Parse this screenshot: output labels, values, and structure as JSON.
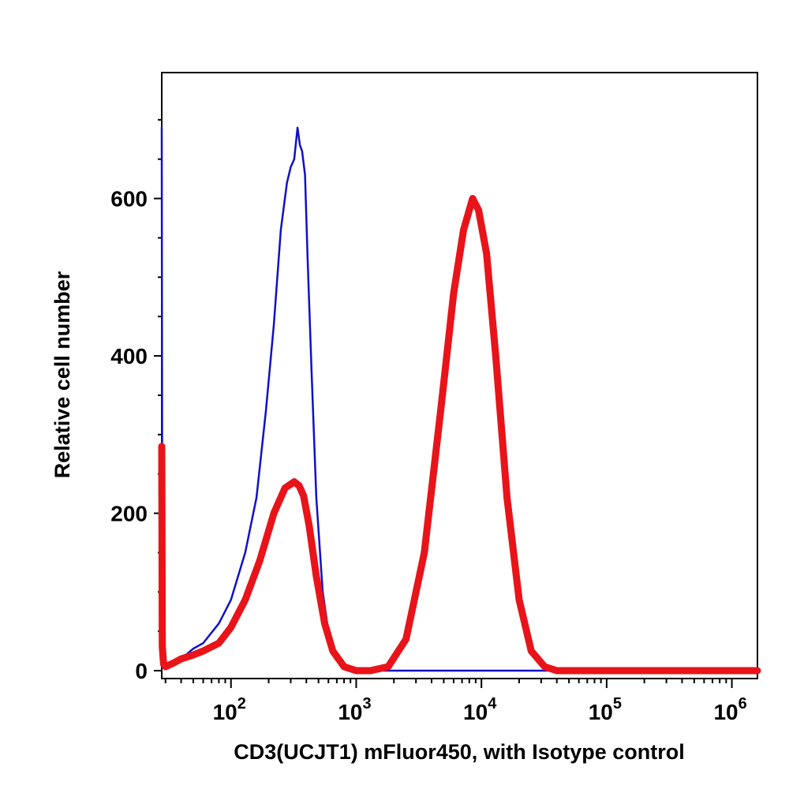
{
  "chart_data": {
    "type": "line",
    "xlabel": "CD3(UCJT1) mFluor450, with Isotype control",
    "ylabel": "Relative cell number",
    "x_scale": "log",
    "xlim": [
      28,
      1600000
    ],
    "ylim": [
      -10,
      760
    ],
    "y_ticks": [
      0,
      200,
      400,
      600
    ],
    "y_tick_labels": [
      "0",
      "200",
      "400",
      "600"
    ],
    "x_ticks": [
      100,
      1000,
      10000,
      100000,
      1000000
    ],
    "x_tick_labels": [
      {
        "base": "10",
        "exp": "2"
      },
      {
        "base": "10",
        "exp": "3"
      },
      {
        "base": "10",
        "exp": "4"
      },
      {
        "base": "10",
        "exp": "5"
      },
      {
        "base": "10",
        "exp": "6"
      }
    ],
    "grid": false,
    "legend": "none",
    "series": [
      {
        "color": "#1010c8",
        "x": [
          28,
          28.3,
          29,
          30,
          33,
          40,
          50,
          60,
          80,
          100,
          130,
          160,
          190,
          220,
          250,
          280,
          300,
          320,
          340,
          355,
          370,
          390,
          410,
          440,
          480,
          540,
          600,
          700,
          800,
          1000,
          1500,
          3000,
          10000,
          100000,
          1000000,
          1600000
        ],
        "y": [
          690,
          100,
          20,
          10,
          10,
          15,
          28,
          35,
          60,
          90,
          150,
          220,
          330,
          440,
          560,
          620,
          640,
          650,
          690,
          668,
          660,
          630,
          520,
          380,
          220,
          100,
          50,
          15,
          3,
          0,
          0,
          0,
          0,
          0,
          0,
          0
        ]
      },
      {
        "color": "#e8141a",
        "x": [
          28,
          28.3,
          29,
          30,
          35,
          40,
          50,
          60,
          80,
          100,
          130,
          170,
          220,
          270,
          320,
          350,
          380,
          420,
          480,
          560,
          650,
          800,
          1000,
          1300,
          1800,
          2500,
          3500,
          4800,
          6000,
          7200,
          8500,
          9500,
          11000,
          13000,
          16000,
          20000,
          25000,
          32000,
          40000,
          100000,
          1000000,
          1600000
        ],
        "y": [
          285,
          30,
          8,
          5,
          10,
          15,
          20,
          25,
          35,
          55,
          90,
          140,
          200,
          232,
          240,
          235,
          222,
          185,
          120,
          60,
          25,
          5,
          0,
          0,
          5,
          40,
          150,
          340,
          480,
          560,
          600,
          585,
          530,
          400,
          220,
          90,
          25,
          5,
          0,
          0,
          0,
          0
        ]
      }
    ]
  }
}
